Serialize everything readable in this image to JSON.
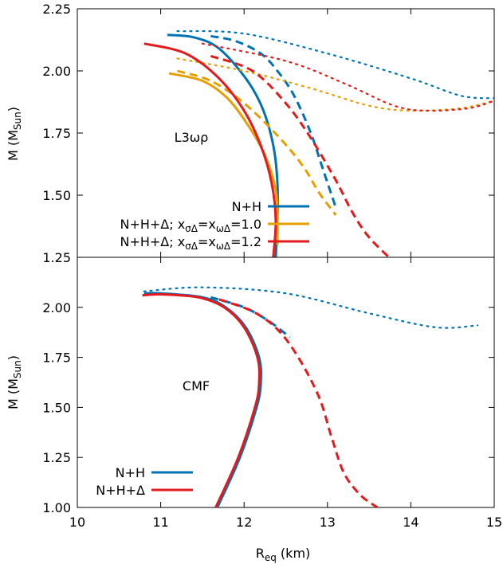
{
  "figure": {
    "xlabel_main": "R",
    "xlabel_sub": "eq",
    "xlabel_unit": " (km)",
    "ylabel_main": "M (M",
    "ylabel_sub": "Sun",
    "ylabel_close": ")"
  },
  "chart_data": [
    {
      "type": "line",
      "panel": "top",
      "label": "L3ωρ",
      "xlim": [
        10,
        15
      ],
      "ylim": [
        1.25,
        2.25
      ],
      "xticks": [
        "10",
        "11",
        "12",
        "13",
        "14",
        "15"
      ],
      "yticks": [
        "1.25",
        "1.50",
        "1.75",
        "2.00",
        "2.25"
      ],
      "grid": false,
      "legend_position": "bottom-center",
      "legend": [
        {
          "main": "N+H",
          "color": "#0072b2"
        },
        {
          "main": "N+H+Δ; x",
          "s1": "σΔ",
          "m2": "=x",
          "s2": "ωΔ",
          "m3": "=1.0",
          "color": "#e69f00"
        },
        {
          "main": "N+H+Δ; x",
          "s1": "σΔ",
          "m2": "=x",
          "s2": "ωΔ",
          "m3": "=1.2",
          "color": "#e41a1c"
        }
      ],
      "series": [
        {
          "legend_index": 0,
          "color": "#0072b2",
          "style": "solid",
          "points": [
            [
              12.38,
              1.25
            ],
            [
              12.4,
              1.4
            ],
            [
              12.4,
              1.55
            ],
            [
              12.35,
              1.7
            ],
            [
              12.22,
              1.85
            ],
            [
              12.02,
              1.97
            ],
            [
              11.7,
              2.09
            ],
            [
              11.4,
              2.135
            ],
            [
              11.08,
              2.145
            ]
          ]
        },
        {
          "legend_index": 0,
          "color": "#0072b2",
          "style": "dashed",
          "points": [
            [
              11.6,
              2.14
            ],
            [
              11.9,
              2.12
            ],
            [
              12.2,
              2.07
            ],
            [
              12.4,
              2.0
            ],
            [
              12.6,
              1.9
            ],
            [
              12.8,
              1.75
            ],
            [
              12.95,
              1.6
            ],
            [
              13.1,
              1.45
            ]
          ]
        },
        {
          "legend_index": 0,
          "color": "#0072b2",
          "style": "dotted",
          "points": [
            [
              11.2,
              2.16
            ],
            [
              12.0,
              2.15
            ],
            [
              13.0,
              2.07
            ],
            [
              14.0,
              1.97
            ],
            [
              14.6,
              1.9
            ],
            [
              15.0,
              1.89
            ]
          ]
        },
        {
          "legend_index": 1,
          "color": "#e69f00",
          "style": "solid",
          "points": [
            [
              12.4,
              1.3
            ],
            [
              12.4,
              1.4
            ],
            [
              12.38,
              1.52
            ],
            [
              12.25,
              1.66
            ],
            [
              12.05,
              1.78
            ],
            [
              11.8,
              1.89
            ],
            [
              11.5,
              1.96
            ],
            [
              11.1,
              1.99
            ]
          ]
        },
        {
          "legend_index": 1,
          "color": "#e69f00",
          "style": "dashed",
          "points": [
            [
              11.2,
              2.0
            ],
            [
              11.6,
              1.96
            ],
            [
              12.0,
              1.87
            ],
            [
              12.4,
              1.74
            ],
            [
              12.7,
              1.62
            ],
            [
              12.9,
              1.51
            ],
            [
              13.1,
              1.42
            ]
          ]
        },
        {
          "legend_index": 1,
          "color": "#e69f00",
          "style": "dotted",
          "points": [
            [
              11.2,
              2.05
            ],
            [
              12.0,
              2.0
            ],
            [
              12.8,
              1.93
            ],
            [
              13.5,
              1.86
            ],
            [
              14.0,
              1.84
            ],
            [
              14.6,
              1.85
            ],
            [
              15.0,
              1.88
            ]
          ]
        },
        {
          "legend_index": 2,
          "color": "#e41a1c",
          "style": "solid",
          "points": [
            [
              12.35,
              1.25
            ],
            [
              12.38,
              1.4
            ],
            [
              12.33,
              1.55
            ],
            [
              12.2,
              1.7
            ],
            [
              12.0,
              1.84
            ],
            [
              11.7,
              1.97
            ],
            [
              11.3,
              2.07
            ],
            [
              10.8,
              2.11
            ]
          ]
        },
        {
          "legend_index": 2,
          "color": "#e41a1c",
          "style": "dashed",
          "points": [
            [
              11.6,
              2.06
            ],
            [
              12.1,
              2.0
            ],
            [
              12.5,
              1.87
            ],
            [
              12.8,
              1.73
            ],
            [
              13.1,
              1.56
            ],
            [
              13.3,
              1.43
            ],
            [
              13.5,
              1.33
            ],
            [
              13.8,
              1.23
            ]
          ]
        },
        {
          "legend_index": 2,
          "color": "#e41a1c",
          "style": "dotted",
          "points": [
            [
              11.5,
              2.11
            ],
            [
              12.5,
              2.04
            ],
            [
              13.2,
              1.95
            ],
            [
              13.8,
              1.86
            ],
            [
              14.2,
              1.84
            ],
            [
              14.7,
              1.85
            ],
            [
              15.0,
              1.88
            ]
          ]
        }
      ]
    },
    {
      "type": "line",
      "panel": "bottom",
      "label": "CMF",
      "xlim": [
        10,
        15
      ],
      "ylim": [
        1.0,
        2.25
      ],
      "xticks": [
        "10",
        "11",
        "12",
        "13",
        "14",
        "15"
      ],
      "yticks": [
        "1.00",
        "1.25",
        "1.50",
        "1.75",
        "2.00"
      ],
      "grid": false,
      "legend_position": "bottom-left",
      "legend": [
        {
          "main": "N+H",
          "color": "#0072b2"
        },
        {
          "main": "N+H+Δ",
          "color": "#e41a1c"
        }
      ],
      "series": [
        {
          "legend_index": 0,
          "color": "#0072b2",
          "style": "solid",
          "points": [
            [
              11.68,
              1.0
            ],
            [
              11.95,
              1.25
            ],
            [
              12.15,
              1.5
            ],
            [
              12.2,
              1.62
            ],
            [
              12.18,
              1.75
            ],
            [
              12.02,
              1.9
            ],
            [
              11.78,
              2.0
            ],
            [
              11.5,
              2.05
            ],
            [
              11.0,
              2.07
            ],
            [
              10.8,
              2.07
            ]
          ]
        },
        {
          "legend_index": 0,
          "color": "#0072b2",
          "style": "dashed",
          "points": [
            [
              11.6,
              2.05
            ],
            [
              12.0,
              2.0
            ],
            [
              12.3,
              1.93
            ],
            [
              12.55,
              1.85
            ]
          ]
        },
        {
          "legend_index": 0,
          "color": "#0072b2",
          "style": "dotted",
          "points": [
            [
              10.8,
              2.08
            ],
            [
              11.5,
              2.1
            ],
            [
              12.5,
              2.07
            ],
            [
              13.5,
              1.97
            ],
            [
              14.3,
              1.9
            ],
            [
              14.8,
              1.91
            ]
          ]
        },
        {
          "legend_index": 1,
          "color": "#e41a1c",
          "style": "solid",
          "points": [
            [
              11.66,
              1.0
            ],
            [
              11.93,
              1.25
            ],
            [
              12.13,
              1.5
            ],
            [
              12.18,
              1.62
            ],
            [
              12.16,
              1.75
            ],
            [
              12.0,
              1.9
            ],
            [
              11.76,
              2.0
            ],
            [
              11.45,
              2.05
            ],
            [
              11.0,
              2.065
            ],
            [
              10.78,
              2.06
            ]
          ]
        },
        {
          "legend_index": 1,
          "color": "#e41a1c",
          "style": "dashed",
          "points": [
            [
              11.7,
              2.04
            ],
            [
              12.1,
              1.98
            ],
            [
              12.4,
              1.89
            ],
            [
              12.65,
              1.75
            ],
            [
              12.9,
              1.55
            ],
            [
              13.05,
              1.35
            ],
            [
              13.2,
              1.17
            ],
            [
              13.4,
              1.06
            ],
            [
              13.6,
              1.0
            ]
          ]
        }
      ]
    }
  ]
}
